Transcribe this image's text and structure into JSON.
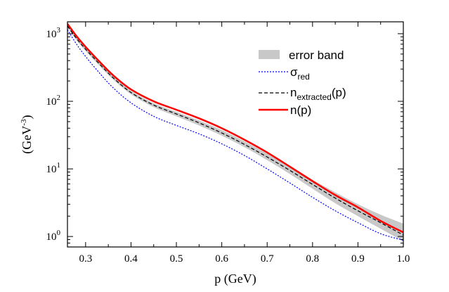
{
  "chart_data": {
    "type": "line",
    "xlabel": "p (GeV)",
    "ylabel": {
      "main": "(GeV",
      "sup": "-3",
      "close": ")"
    },
    "xlim": [
      0.26,
      1.0
    ],
    "ylim": [
      0.7,
      1500
    ],
    "yscale": "log",
    "grid": false,
    "legend_position": "top-right",
    "x_ticks": [
      0.3,
      0.4,
      0.5,
      0.6,
      0.7,
      0.8,
      0.9,
      1.0
    ],
    "x_tick_labels": [
      "0.3",
      "0.4",
      "0.5",
      "0.6",
      "0.7",
      "0.8",
      "0.9",
      "1.0"
    ],
    "y_ticks": [
      {
        "value": 1,
        "base": "10",
        "exp": "0"
      },
      {
        "value": 10,
        "base": "10",
        "exp": "1"
      },
      {
        "value": 100,
        "base": "10",
        "exp": "2"
      },
      {
        "value": 1000,
        "base": "10",
        "exp": "3"
      }
    ],
    "legend": [
      {
        "key": "band",
        "label": "error band"
      },
      {
        "key": "sigma",
        "label_main": "σ",
        "label_sub": "red"
      },
      {
        "key": "next",
        "label_main": "n",
        "label_sub": "extracted",
        "label_tail": "(p)"
      },
      {
        "key": "n",
        "label": "n(p)"
      }
    ],
    "x": [
      0.26,
      0.28,
      0.3,
      0.33,
      0.36,
      0.4,
      0.45,
      0.5,
      0.55,
      0.6,
      0.65,
      0.7,
      0.75,
      0.8,
      0.85,
      0.9,
      0.95,
      1.0
    ],
    "series": [
      {
        "key": "n",
        "color": "#ff0000",
        "style": "solid",
        "values": [
          1400,
          920,
          640,
          390,
          245,
          150,
          100,
          75,
          56,
          40,
          27,
          17.5,
          10.8,
          6.6,
          4.1,
          2.7,
          1.7,
          1.15
        ]
      },
      {
        "key": "next",
        "color": "#000000",
        "style": "dashed",
        "values": [
          1300,
          850,
          590,
          360,
          225,
          135,
          88,
          65,
          48,
          34,
          23,
          15,
          9.5,
          5.9,
          3.7,
          2.4,
          1.6,
          1.05
        ]
      },
      {
        "key": "sigma",
        "color": "#0000ff",
        "style": "dotted",
        "values": [
          1150,
          700,
          460,
          265,
          160,
          95,
          60,
          44,
          33,
          23.5,
          15.8,
          10,
          6.2,
          3.8,
          2.4,
          1.6,
          1.1,
          0.88
        ]
      }
    ],
    "band": {
      "color": "#c8c8c8",
      "lower": [
        1230,
        800,
        555,
        338,
        212,
        127,
        82,
        60,
        44,
        31,
        21,
        13.5,
        8.4,
        5.1,
        3.1,
        2.0,
        1.3,
        0.85
      ],
      "upper": [
        1370,
        900,
        625,
        382,
        238,
        143,
        94,
        70,
        52,
        37.5,
        25.5,
        16.8,
        10.8,
        6.9,
        4.5,
        3.0,
        2.1,
        1.55
      ]
    }
  }
}
